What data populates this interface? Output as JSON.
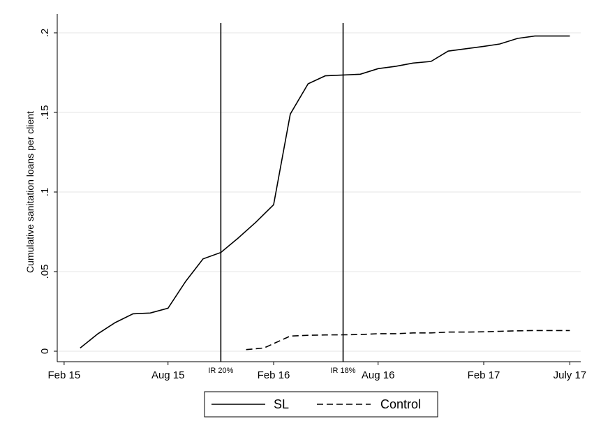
{
  "chart_data": {
    "type": "line",
    "title": "",
    "xlabel": "",
    "ylabel": "Cumulative sanitation loans per client",
    "x_range": [
      "2015-01-20",
      "2017-07-20"
    ],
    "ylim": [
      0,
      0.2
    ],
    "x_ticks": [
      {
        "date": "2015-02-01",
        "label": "Feb 15"
      },
      {
        "date": "2015-08-01",
        "label": "Aug 15"
      },
      {
        "date": "2016-02-01",
        "label": "Feb 16"
      },
      {
        "date": "2016-08-01",
        "label": "Aug 16"
      },
      {
        "date": "2017-02-01",
        "label": "Feb 17"
      },
      {
        "date": "2017-07-01",
        "label": "July 17"
      }
    ],
    "y_ticks": [
      {
        "value": 0,
        "label": "0"
      },
      {
        "value": 0.05,
        "label": ".05"
      },
      {
        "value": 0.1,
        "label": ".1"
      },
      {
        "value": 0.15,
        "label": ".15"
      },
      {
        "value": 0.2,
        "label": ".2"
      }
    ],
    "grid": "horizontal",
    "reference_lines": [
      {
        "date": "2015-11-01",
        "label": "IR 20%"
      },
      {
        "date": "2016-06-01",
        "label": "IR 18%"
      }
    ],
    "series": [
      {
        "name": "SL",
        "style": "solid",
        "points": [
          [
            "2015-03-01",
            0.002
          ],
          [
            "2015-04-01",
            0.011
          ],
          [
            "2015-05-01",
            0.018
          ],
          [
            "2015-06-01",
            0.0235
          ],
          [
            "2015-07-01",
            0.024
          ],
          [
            "2015-08-01",
            0.027
          ],
          [
            "2015-09-01",
            0.044
          ],
          [
            "2015-10-01",
            0.058
          ],
          [
            "2015-11-01",
            0.062
          ],
          [
            "2015-12-01",
            0.071
          ],
          [
            "2016-01-01",
            0.081
          ],
          [
            "2016-02-01",
            0.092
          ],
          [
            "2016-03-01",
            0.149
          ],
          [
            "2016-04-01",
            0.168
          ],
          [
            "2016-05-01",
            0.173
          ],
          [
            "2016-06-01",
            0.1735
          ],
          [
            "2016-07-01",
            0.174
          ],
          [
            "2016-08-01",
            0.1775
          ],
          [
            "2016-09-01",
            0.179
          ],
          [
            "2016-10-01",
            0.181
          ],
          [
            "2016-11-01",
            0.182
          ],
          [
            "2016-12-01",
            0.1885
          ],
          [
            "2017-01-01",
            0.19
          ],
          [
            "2017-02-01",
            0.1915
          ],
          [
            "2017-03-01",
            0.193
          ],
          [
            "2017-04-01",
            0.1965
          ],
          [
            "2017-05-01",
            0.198
          ],
          [
            "2017-06-01",
            0.198
          ],
          [
            "2017-07-01",
            0.198
          ]
        ]
      },
      {
        "name": "Control",
        "style": "dashed",
        "points": [
          [
            "2015-12-15",
            0.001
          ],
          [
            "2016-01-15",
            0.002
          ],
          [
            "2016-03-01",
            0.0095
          ],
          [
            "2016-04-01",
            0.01
          ],
          [
            "2016-05-01",
            0.0102
          ],
          [
            "2016-06-01",
            0.0103
          ],
          [
            "2016-07-01",
            0.0105
          ],
          [
            "2016-08-01",
            0.011
          ],
          [
            "2016-09-01",
            0.011
          ],
          [
            "2016-10-01",
            0.0115
          ],
          [
            "2016-11-01",
            0.0115
          ],
          [
            "2016-12-01",
            0.012
          ],
          [
            "2017-01-01",
            0.012
          ],
          [
            "2017-02-01",
            0.0122
          ],
          [
            "2017-03-01",
            0.0125
          ],
          [
            "2017-04-01",
            0.0128
          ],
          [
            "2017-05-01",
            0.013
          ],
          [
            "2017-06-01",
            0.013
          ],
          [
            "2017-07-01",
            0.013
          ]
        ]
      }
    ],
    "legend": {
      "position": "bottom-center",
      "entries": [
        {
          "label": "SL",
          "style": "solid"
        },
        {
          "label": "Control",
          "style": "dashed"
        }
      ]
    }
  }
}
